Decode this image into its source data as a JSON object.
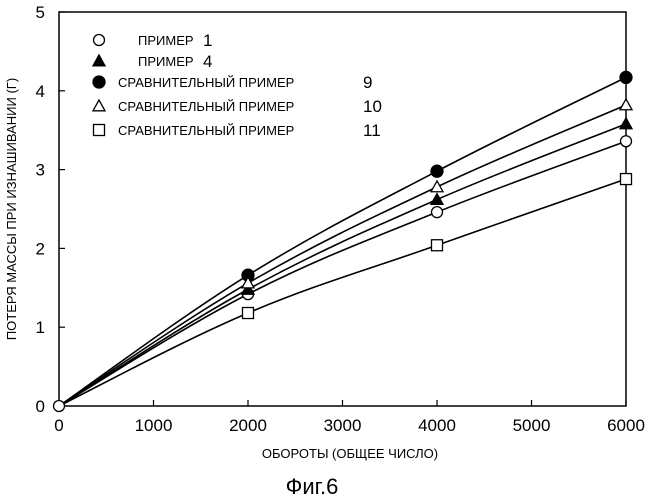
{
  "chart_data": {
    "type": "line",
    "xlabel": "ОБОРОТЫ (ОБЩЕЕ ЧИСЛО)",
    "ylabel": "ПОТЕРЯ МАССЫ ПРИ ИЗНАШИВАНИИ (Г)",
    "xlim": [
      0,
      6000
    ],
    "ylim": [
      0,
      5
    ],
    "xticks": [
      0,
      1000,
      2000,
      3000,
      4000,
      5000,
      6000
    ],
    "yticks": [
      0,
      1,
      2,
      3,
      4,
      5
    ],
    "grid": false,
    "legend_position": "top-left",
    "series": [
      {
        "name": "ПРИМЕР",
        "number": "1",
        "marker": "open-circle",
        "x": [
          0,
          2000,
          4000,
          6000
        ],
        "y": [
          0,
          1.42,
          2.46,
          3.36
        ]
      },
      {
        "name": "ПРИМЕР",
        "number": "4",
        "marker": "filled-triangle",
        "x": [
          0,
          2000,
          4000,
          6000
        ],
        "y": [
          0,
          1.48,
          2.62,
          3.58
        ]
      },
      {
        "name": "СРАВНИТЕЛЬНЫЙ ПРИМЕР",
        "number": "9",
        "marker": "filled-circle",
        "x": [
          0,
          2000,
          4000,
          6000
        ],
        "y": [
          0,
          1.66,
          2.98,
          4.17
        ]
      },
      {
        "name": "СРАВНИТЕЛЬНЫЙ ПРИМЕР",
        "number": "10",
        "marker": "open-triangle",
        "x": [
          0,
          2000,
          4000,
          6000
        ],
        "y": [
          0,
          1.56,
          2.78,
          3.82
        ]
      },
      {
        "name": "СРАВНИТЕЛЬНЫЙ ПРИМЕР",
        "number": "11",
        "marker": "open-square",
        "x": [
          0,
          2000,
          4000,
          6000
        ],
        "y": [
          0,
          1.18,
          2.04,
          2.88
        ]
      }
    ]
  },
  "caption": "Фиг.6"
}
